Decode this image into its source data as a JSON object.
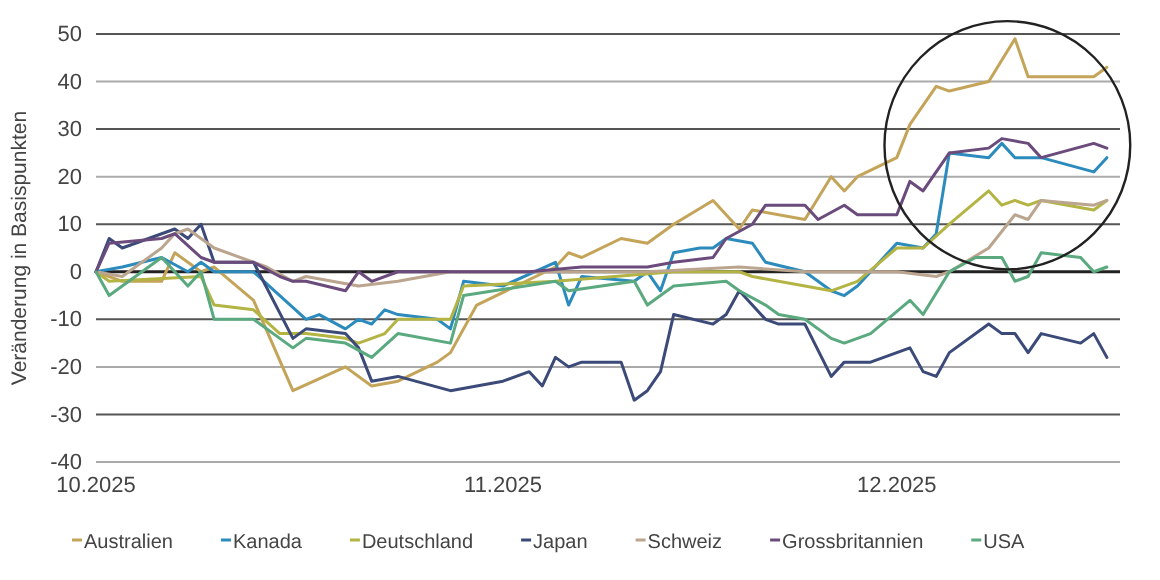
{
  "chart_data": {
    "type": "line",
    "ylabel": "Veränderung in Basispunkten",
    "xlim": [
      "2025-10-01",
      "2025-12-18"
    ],
    "xticks": [
      {
        "value": "2025-10-01",
        "label": "10.2025"
      },
      {
        "value": "2025-11-01",
        "label": "11.2025"
      },
      {
        "value": "2025-12-01",
        "label": "12.2025"
      }
    ],
    "ylim": [
      -40,
      50
    ],
    "yticks": [
      -40,
      -30,
      -20,
      -10,
      0,
      10,
      20,
      30,
      40,
      50
    ],
    "grid": "y",
    "legend": "bottom",
    "marker": "none",
    "line_style": "solid",
    "series": [
      {
        "name": "Australien",
        "color": "#c4a458",
        "x": [
          "2025-10-01",
          "2025-10-03",
          "2025-10-06",
          "2025-10-07",
          "2025-10-09",
          "2025-10-10",
          "2025-10-13",
          "2025-10-16",
          "2025-10-20",
          "2025-10-22",
          "2025-10-24",
          "2025-10-27",
          "2025-10-28",
          "2025-10-30",
          "2025-11-05",
          "2025-11-06",
          "2025-11-07",
          "2025-11-10",
          "2025-11-12",
          "2025-11-14",
          "2025-11-17",
          "2025-11-19",
          "2025-11-20",
          "2025-11-24",
          "2025-11-26",
          "2025-11-27",
          "2025-11-28",
          "2025-12-01",
          "2025-12-02",
          "2025-12-04",
          "2025-12-05",
          "2025-12-08",
          "2025-12-10",
          "2025-12-11",
          "2025-12-12",
          "2025-12-16",
          "2025-12-17"
        ],
        "values": [
          0,
          -2,
          -2,
          4,
          0,
          1,
          -6,
          -25,
          -20,
          -24,
          -23,
          -19,
          -17,
          -7,
          1,
          4,
          3,
          7,
          6,
          10,
          15,
          9,
          13,
          11,
          20,
          17,
          20,
          24,
          31,
          39,
          38,
          40,
          49,
          41,
          41,
          41,
          43
        ]
      },
      {
        "name": "Kanada",
        "color": "#2c8bbd",
        "x": [
          "2025-10-01",
          "2025-10-03",
          "2025-10-06",
          "2025-10-08",
          "2025-10-09",
          "2025-10-10",
          "2025-10-13",
          "2025-10-15",
          "2025-10-17",
          "2025-10-18",
          "2025-10-20",
          "2025-10-21",
          "2025-10-22",
          "2025-10-23",
          "2025-10-24",
          "2025-10-27",
          "2025-10-28",
          "2025-10-29",
          "2025-11-01",
          "2025-11-05",
          "2025-11-06",
          "2025-11-07",
          "2025-11-11",
          "2025-11-12",
          "2025-11-13",
          "2025-11-14",
          "2025-11-16",
          "2025-11-17",
          "2025-11-18",
          "2025-11-20",
          "2025-11-21",
          "2025-11-24",
          "2025-11-26",
          "2025-11-27",
          "2025-11-28",
          "2025-12-01",
          "2025-12-03",
          "2025-12-04",
          "2025-12-05",
          "2025-12-08",
          "2025-12-09",
          "2025-12-10",
          "2025-12-12",
          "2025-12-16",
          "2025-12-17"
        ],
        "values": [
          0,
          1,
          3,
          0,
          2,
          0,
          0,
          -5,
          -10,
          -9,
          -12,
          -10,
          -11,
          -8,
          -9,
          -10,
          -12,
          -2,
          -3,
          2,
          -7,
          -1,
          -2,
          0,
          -4,
          4,
          5,
          5,
          7,
          6,
          2,
          0,
          -4,
          -5,
          -3,
          6,
          5,
          8,
          25,
          24,
          27,
          24,
          24,
          21,
          24
        ]
      },
      {
        "name": "Deutschland",
        "color": "#b3b444",
        "x": [
          "2025-10-01",
          "2025-10-02",
          "2025-10-09",
          "2025-10-10",
          "2025-10-13",
          "2025-10-15",
          "2025-10-17",
          "2025-10-20",
          "2025-10-21",
          "2025-10-23",
          "2025-10-24",
          "2025-10-28",
          "2025-10-29",
          "2025-11-05",
          "2025-11-14",
          "2025-11-19",
          "2025-11-20",
          "2025-11-24",
          "2025-11-26",
          "2025-11-28",
          "2025-12-01",
          "2025-12-03",
          "2025-12-05",
          "2025-12-08",
          "2025-12-09",
          "2025-12-10",
          "2025-12-11",
          "2025-12-12",
          "2025-12-16",
          "2025-12-17"
        ],
        "values": [
          0,
          -2,
          -1,
          -7,
          -8,
          -13,
          -13,
          -14,
          -15,
          -13,
          -10,
          -10,
          -3,
          -2,
          0,
          0,
          -1,
          -3,
          -4,
          -2,
          5,
          5,
          10,
          17,
          14,
          15,
          14,
          15,
          13,
          15
        ]
      },
      {
        "name": "Japan",
        "color": "#3b4a78",
        "x": [
          "2025-10-01",
          "2025-10-02",
          "2025-10-03",
          "2025-10-07",
          "2025-10-08",
          "2025-10-09",
          "2025-10-10",
          "2025-10-13",
          "2025-10-16",
          "2025-10-17",
          "2025-10-20",
          "2025-10-21",
          "2025-10-22",
          "2025-10-24",
          "2025-10-28",
          "2025-10-30",
          "2025-11-01",
          "2025-11-03",
          "2025-11-04",
          "2025-11-05",
          "2025-11-06",
          "2025-11-07",
          "2025-11-10",
          "2025-11-11",
          "2025-11-12",
          "2025-11-13",
          "2025-11-14",
          "2025-11-17",
          "2025-11-18",
          "2025-11-19",
          "2025-11-21",
          "2025-11-22",
          "2025-11-24",
          "2025-11-26",
          "2025-11-27",
          "2025-11-29",
          "2025-12-02",
          "2025-12-03",
          "2025-12-04",
          "2025-12-05",
          "2025-12-08",
          "2025-12-09",
          "2025-12-10",
          "2025-12-11",
          "2025-12-12",
          "2025-12-15",
          "2025-12-16",
          "2025-12-17"
        ],
        "values": [
          0,
          7,
          5,
          9,
          7,
          10,
          2,
          2,
          -14,
          -12,
          -13,
          -16,
          -23,
          -22,
          -25,
          -24,
          -23,
          -21,
          -24,
          -18,
          -20,
          -19,
          -19,
          -27,
          -25,
          -21,
          -9,
          -11,
          -9,
          -4,
          -10,
          -11,
          -11,
          -22,
          -19,
          -19,
          -16,
          -21,
          -22,
          -17,
          -11,
          -13,
          -13,
          -17,
          -13,
          -15,
          -13,
          -18
        ]
      },
      {
        "name": "Schweiz",
        "color": "#bba58e",
        "x": [
          "2025-10-01",
          "2025-10-03",
          "2025-10-06",
          "2025-10-07",
          "2025-10-08",
          "2025-10-10",
          "2025-10-14",
          "2025-10-16",
          "2025-10-17",
          "2025-10-21",
          "2025-10-24",
          "2025-10-28",
          "2025-11-05",
          "2025-11-12",
          "2025-11-19",
          "2025-11-24",
          "2025-11-27",
          "2025-12-01",
          "2025-12-04",
          "2025-12-05",
          "2025-12-08",
          "2025-12-10",
          "2025-12-11",
          "2025-12-12",
          "2025-12-16",
          "2025-12-17"
        ],
        "values": [
          0,
          -1,
          5,
          8,
          9,
          5,
          1,
          -2,
          -1,
          -3,
          -2,
          0,
          0,
          0,
          1,
          0,
          0,
          0,
          -1,
          0,
          5,
          12,
          11,
          15,
          14,
          15
        ]
      },
      {
        "name": "Grossbritannien",
        "color": "#6a4b7c",
        "x": [
          "2025-10-01",
          "2025-10-02",
          "2025-10-06",
          "2025-10-07",
          "2025-10-09",
          "2025-10-10",
          "2025-10-13",
          "2025-10-15",
          "2025-10-16",
          "2025-10-17",
          "2025-10-20",
          "2025-10-21",
          "2025-10-22",
          "2025-10-24",
          "2025-11-03",
          "2025-11-07",
          "2025-11-12",
          "2025-11-14",
          "2025-11-17",
          "2025-11-18",
          "2025-11-20",
          "2025-11-21",
          "2025-11-24",
          "2025-11-25",
          "2025-11-27",
          "2025-11-28",
          "2025-12-01",
          "2025-12-02",
          "2025-12-03",
          "2025-12-05",
          "2025-12-08",
          "2025-12-09",
          "2025-12-11",
          "2025-12-12",
          "2025-12-16",
          "2025-12-17"
        ],
        "values": [
          0,
          6,
          7,
          8,
          3,
          2,
          2,
          -1,
          -2,
          -2,
          -4,
          0,
          -2,
          0,
          0,
          1,
          1,
          2,
          3,
          7,
          10,
          14,
          14,
          11,
          14,
          12,
          12,
          19,
          17,
          25,
          26,
          28,
          27,
          24,
          27,
          26
        ]
      },
      {
        "name": "USA",
        "color": "#5aa97f",
        "x": [
          "2025-10-01",
          "2025-10-02",
          "2025-10-04",
          "2025-10-06",
          "2025-10-07",
          "2025-10-08",
          "2025-10-09",
          "2025-10-10",
          "2025-10-13",
          "2025-10-15",
          "2025-10-16",
          "2025-10-17",
          "2025-10-20",
          "2025-10-22",
          "2025-10-24",
          "2025-10-28",
          "2025-10-29",
          "2025-11-05",
          "2025-11-06",
          "2025-11-11",
          "2025-11-12",
          "2025-11-14",
          "2025-11-18",
          "2025-11-19",
          "2025-11-21",
          "2025-11-22",
          "2025-11-24",
          "2025-11-26",
          "2025-11-27",
          "2025-11-29",
          "2025-12-02",
          "2025-12-03",
          "2025-12-05",
          "2025-12-07",
          "2025-12-09",
          "2025-12-10",
          "2025-12-11",
          "2025-12-12",
          "2025-12-15",
          "2025-12-16",
          "2025-12-17"
        ],
        "values": [
          0,
          -5,
          -1,
          3,
          0,
          -3,
          0,
          -10,
          -10,
          -14,
          -16,
          -14,
          -15,
          -18,
          -13,
          -15,
          -5,
          -2,
          -4,
          -2,
          -7,
          -3,
          -2,
          -4,
          -7,
          -9,
          -10,
          -14,
          -15,
          -13,
          -6,
          -9,
          0,
          3,
          3,
          -2,
          -1,
          4,
          3,
          0,
          1
        ]
      }
    ]
  }
}
